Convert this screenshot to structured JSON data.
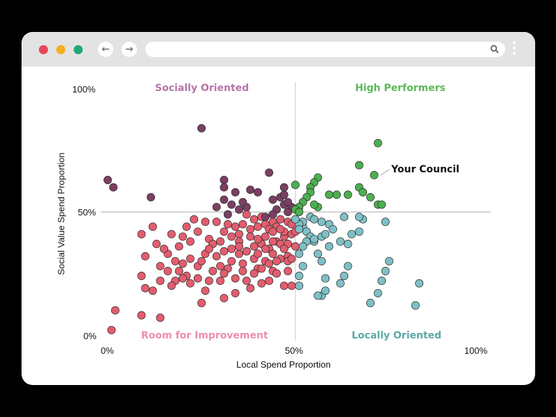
{
  "browser": {
    "traffic_lights": {
      "close": "#e8445a",
      "minimize": "#f2b01e",
      "maximize": "#22a77a"
    },
    "back_icon": "←",
    "forward_icon": "→",
    "url": "",
    "search_icon": "search-icon",
    "menu_icon": "kebab-menu-icon"
  },
  "chart": {
    "y_ticks": [
      "100%",
      "50%",
      "0%"
    ],
    "x_ticks": [
      "0%",
      "50%",
      "100%"
    ],
    "x_label": "Local Spend Proportion",
    "y_label": "Social Value Spend Proportion",
    "quadrants": {
      "top_left": {
        "label": "Socially Oriented",
        "color": "#b476a8"
      },
      "top_right": {
        "label": "High Performers",
        "color": "#5cb85c"
      },
      "bottom_left": {
        "label": "Room for Improvement",
        "color": "#ec8fa8"
      },
      "bottom_right": {
        "label": "Locally Oriented",
        "color": "#5aa9a6"
      }
    },
    "annotation": "Your Council",
    "colors": {
      "socially_oriented": "#7b3f63",
      "high_performers": "#4caf50",
      "room_for_improvement": "#e35d6e",
      "locally_oriented": "#7ec0c6"
    }
  },
  "chart_data": {
    "type": "scatter",
    "title": "",
    "xlabel": "Local Spend Proportion",
    "ylabel": "Social Value Spend Proportion",
    "xlim": [
      0,
      100
    ],
    "ylim": [
      0,
      100
    ],
    "x_ticks": [
      "0%",
      "50%",
      "100%"
    ],
    "y_ticks": [
      "0%",
      "50%",
      "100%"
    ],
    "grid": false,
    "reference_lines": {
      "x": 50,
      "y": 50
    },
    "quadrant_labels": [
      "Socially Oriented",
      "High Performers",
      "Room for Improvement",
      "Locally Oriented"
    ],
    "annotation": {
      "text": "Your Council",
      "x": 71,
      "y": 65
    },
    "series": [
      {
        "name": "Socially Oriented",
        "color": "#7b3f63",
        "points": [
          [
            25,
            84
          ],
          [
            0,
            63
          ],
          [
            1.5,
            60
          ],
          [
            11.5,
            56
          ],
          [
            43,
            66
          ],
          [
            31,
            63
          ],
          [
            31,
            60
          ],
          [
            34,
            58
          ],
          [
            40,
            58
          ],
          [
            38,
            59
          ],
          [
            47,
            60
          ],
          [
            31,
            55
          ],
          [
            44,
            55
          ],
          [
            29,
            52
          ],
          [
            32,
            49
          ],
          [
            35,
            51
          ],
          [
            37,
            52
          ],
          [
            36,
            54
          ],
          [
            33,
            53
          ],
          [
            46,
            56
          ],
          [
            47,
            53
          ],
          [
            45,
            51
          ],
          [
            44,
            49
          ],
          [
            49,
            52
          ],
          [
            48,
            50
          ],
          [
            42,
            48
          ],
          [
            47,
            57
          ],
          [
            48,
            54
          ]
        ]
      },
      {
        "name": "High Performers",
        "color": "#4caf50",
        "points": [
          [
            72,
            78
          ],
          [
            67,
            69
          ],
          [
            71,
            65
          ],
          [
            56,
            64
          ],
          [
            55,
            62
          ],
          [
            50,
            61
          ],
          [
            67,
            60
          ],
          [
            68,
            58
          ],
          [
            64,
            57
          ],
          [
            61,
            57
          ],
          [
            59,
            57
          ],
          [
            70,
            56
          ],
          [
            54,
            60
          ],
          [
            54,
            58
          ],
          [
            53,
            56
          ],
          [
            72,
            53
          ],
          [
            73,
            53
          ],
          [
            56,
            52
          ],
          [
            55,
            53
          ],
          [
            52,
            54
          ],
          [
            51,
            52
          ],
          [
            50,
            51
          ],
          [
            51,
            50
          ]
        ]
      },
      {
        "name": "Room for Improvement",
        "color": "#e35d6e",
        "points": [
          [
            2,
            10
          ],
          [
            1,
            2
          ],
          [
            9,
            8
          ],
          [
            14,
            7
          ],
          [
            10,
            19
          ],
          [
            12,
            18
          ],
          [
            9,
            24
          ],
          [
            10,
            32
          ],
          [
            16,
            26
          ],
          [
            18,
            22
          ],
          [
            25,
            13
          ],
          [
            26,
            18
          ],
          [
            31,
            15
          ],
          [
            34,
            17
          ],
          [
            38,
            19
          ],
          [
            27,
            22
          ],
          [
            30,
            22
          ],
          [
            36,
            26
          ],
          [
            40,
            27
          ],
          [
            44,
            26
          ],
          [
            48,
            26
          ],
          [
            16,
            33
          ],
          [
            18,
            30
          ],
          [
            20,
            29
          ],
          [
            22,
            31
          ],
          [
            24,
            28
          ],
          [
            26,
            33
          ],
          [
            29,
            32
          ],
          [
            31,
            34
          ],
          [
            33,
            35
          ],
          [
            35,
            33
          ],
          [
            37,
            34
          ],
          [
            39,
            36
          ],
          [
            41,
            37
          ],
          [
            43,
            35
          ],
          [
            45,
            38
          ],
          [
            47,
            40
          ],
          [
            49,
            41
          ],
          [
            12,
            44
          ],
          [
            17,
            41
          ],
          [
            20,
            40
          ],
          [
            24,
            42
          ],
          [
            27,
            39
          ],
          [
            30,
            38
          ],
          [
            33,
            40
          ],
          [
            35,
            41
          ],
          [
            38,
            43
          ],
          [
            40,
            44
          ],
          [
            42,
            45
          ],
          [
            44,
            46
          ],
          [
            46,
            47
          ],
          [
            48,
            46
          ],
          [
            9,
            41
          ],
          [
            13,
            37
          ],
          [
            15,
            35
          ],
          [
            19,
            36
          ],
          [
            22,
            38
          ],
          [
            28,
            37
          ],
          [
            31,
            42
          ],
          [
            34,
            44
          ],
          [
            36,
            45
          ],
          [
            39,
            47
          ],
          [
            41,
            48
          ],
          [
            43,
            43
          ],
          [
            45,
            44
          ],
          [
            47,
            42
          ],
          [
            49,
            45
          ],
          [
            26,
            46
          ],
          [
            21,
            44
          ],
          [
            23,
            47
          ],
          [
            29,
            46
          ],
          [
            32,
            45
          ],
          [
            37,
            49
          ],
          [
            40,
            39
          ],
          [
            42,
            40
          ],
          [
            44,
            42
          ],
          [
            46,
            37
          ],
          [
            48,
            32
          ],
          [
            50,
            36
          ],
          [
            33,
            30
          ],
          [
            36,
            29
          ],
          [
            39,
            31
          ],
          [
            42,
            30
          ],
          [
            44,
            33
          ],
          [
            46,
            31
          ],
          [
            48,
            30
          ],
          [
            21,
            24
          ],
          [
            24,
            23
          ],
          [
            28,
            26
          ],
          [
            30,
            28
          ],
          [
            32,
            27
          ],
          [
            34,
            23
          ],
          [
            37,
            22
          ],
          [
            41,
            21
          ],
          [
            43,
            22
          ],
          [
            45,
            25
          ],
          [
            47,
            20
          ],
          [
            49,
            20
          ],
          [
            17,
            20
          ],
          [
            20,
            23
          ],
          [
            22,
            21
          ],
          [
            14,
            22
          ],
          [
            14,
            28
          ],
          [
            19,
            26
          ],
          [
            25,
            30
          ],
          [
            27,
            35
          ],
          [
            31,
            25
          ],
          [
            35,
            38
          ],
          [
            38,
            40
          ],
          [
            40,
            33
          ],
          [
            42,
            35
          ],
          [
            44,
            38
          ],
          [
            46,
            43
          ],
          [
            48,
            37
          ],
          [
            50,
            42
          ],
          [
            49,
            31
          ],
          [
            47,
            35
          ],
          [
            45,
            30
          ],
          [
            43,
            29
          ],
          [
            41,
            27
          ],
          [
            39,
            25
          ],
          [
            37,
            34
          ],
          [
            35,
            36
          ]
        ]
      },
      {
        "name": "Locally Oriented",
        "color": "#7ec0c6",
        "points": [
          [
            83,
            21
          ],
          [
            82,
            12
          ],
          [
            75,
            30
          ],
          [
            74,
            26
          ],
          [
            73,
            22
          ],
          [
            72,
            17
          ],
          [
            70,
            13
          ],
          [
            64,
            28
          ],
          [
            63,
            24
          ],
          [
            62,
            21
          ],
          [
            57,
            16
          ],
          [
            58,
            18
          ],
          [
            58,
            23
          ],
          [
            56,
            16
          ],
          [
            51,
            24
          ],
          [
            51,
            20
          ],
          [
            51,
            33
          ],
          [
            52,
            28
          ],
          [
            55,
            38
          ],
          [
            56,
            33
          ],
          [
            57,
            30
          ],
          [
            59,
            36
          ],
          [
            62,
            38
          ],
          [
            64,
            37
          ],
          [
            65,
            41
          ],
          [
            67,
            42
          ],
          [
            68,
            47
          ],
          [
            74,
            46
          ],
          [
            63,
            48
          ],
          [
            67,
            48
          ],
          [
            54,
            48
          ],
          [
            55,
            47
          ],
          [
            57,
            46
          ],
          [
            59,
            45
          ],
          [
            60,
            43
          ],
          [
            52,
            44
          ],
          [
            53,
            42
          ],
          [
            54,
            40
          ],
          [
            55,
            39
          ],
          [
            57,
            40
          ],
          [
            58,
            41
          ],
          [
            52,
            46
          ],
          [
            51,
            45
          ],
          [
            50,
            47
          ],
          [
            51,
            43
          ],
          [
            53,
            38
          ],
          [
            52,
            36
          ]
        ]
      }
    ]
  }
}
